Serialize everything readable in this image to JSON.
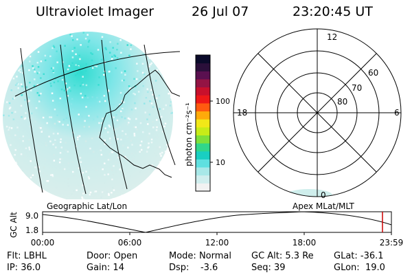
{
  "header": {
    "instrument": "Ultraviolet Imager",
    "date": "26 Jul 07",
    "time": "23:20:45 UT"
  },
  "colorbar": {
    "label": "photon cm⁻²s⁻¹",
    "ticks": [
      "100",
      "10"
    ],
    "colors": [
      "#f2f2f2",
      "#d0eeee",
      "#a8e8e8",
      "#5fe0e0",
      "#19cfc2",
      "#31d68a",
      "#7ee03a",
      "#c8ec18",
      "#f2e818",
      "#ffaa0a",
      "#ff5a10",
      "#ee1818",
      "#c8102c",
      "#941444",
      "#5a1050",
      "#2a0f3a",
      "#0a0a2a"
    ]
  },
  "left_map": {
    "label": "Geographic Lat/Lon",
    "glow_colors": {
      "bright": "#2fdcd0",
      "mid": "#8ee7ea",
      "faint": "#d4ecea"
    }
  },
  "polar_plot": {
    "label": "Apex MLat/MLT",
    "mlt_labels": {
      "top": "12",
      "left": "18",
      "right": "6",
      "bottom": "0"
    },
    "lat_labels": [
      "60",
      "70",
      "80"
    ]
  },
  "gc_alt_panel": {
    "ylabel": "GC Alt",
    "y_ticks": [
      "9.0",
      "1.8"
    ],
    "x_ticks": [
      "00:00",
      "06:00",
      "12:00",
      "18:00",
      "23:59"
    ],
    "marker_color": "#cc0000"
  },
  "status": {
    "row1": [
      {
        "key": "Flt:",
        "value": "LBHL"
      },
      {
        "key": "Door:",
        "value": "Open"
      },
      {
        "key": "Mode:",
        "value": "Normal"
      },
      {
        "key": "GC Alt:",
        "value": "5.3 Re"
      },
      {
        "key": "GLat:",
        "value": "-36.1"
      }
    ],
    "row2": [
      {
        "key": "IP:",
        "value": "36.0"
      },
      {
        "key": "Gain:",
        "value": "14"
      },
      {
        "key": "Dsp:",
        "value": "-3.6"
      },
      {
        "key": "Seq:",
        "value": "39"
      },
      {
        "key": "GLon:",
        "value": "19.0"
      }
    ]
  }
}
